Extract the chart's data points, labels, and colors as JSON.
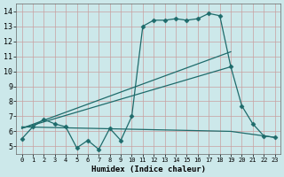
{
  "xlabel": "Humidex (Indice chaleur)",
  "xlim": [
    -0.5,
    23.5
  ],
  "ylim": [
    4.5,
    14.5
  ],
  "xticks": [
    0,
    1,
    2,
    3,
    4,
    5,
    6,
    7,
    8,
    9,
    10,
    11,
    12,
    13,
    14,
    15,
    16,
    17,
    18,
    19,
    20,
    21,
    22,
    23
  ],
  "yticks": [
    5,
    6,
    7,
    8,
    9,
    10,
    11,
    12,
    13,
    14
  ],
  "bg_color": "#cce8ea",
  "grid_color": "#b0d0d4",
  "line_color": "#1e6b6b",
  "line1_x": [
    0,
    1,
    2,
    3,
    4,
    5,
    6,
    7,
    8,
    9,
    10,
    11,
    12,
    13,
    14,
    15,
    16,
    17,
    18,
    19,
    20,
    21,
    22,
    23
  ],
  "line1_y": [
    5.5,
    6.3,
    6.8,
    6.5,
    6.3,
    4.9,
    5.4,
    4.8,
    6.2,
    5.4,
    7.0,
    13.0,
    13.4,
    13.4,
    13.5,
    13.4,
    13.5,
    13.85,
    13.7,
    10.3,
    7.7,
    6.5,
    5.7,
    5.6
  ],
  "line2_x": [
    0,
    19
  ],
  "line2_y": [
    6.2,
    11.3
  ],
  "line3_x": [
    0,
    19
  ],
  "line3_y": [
    6.2,
    10.3
  ],
  "line4_x": [
    0,
    19,
    23
  ],
  "line4_y": [
    6.3,
    6.0,
    5.6
  ]
}
